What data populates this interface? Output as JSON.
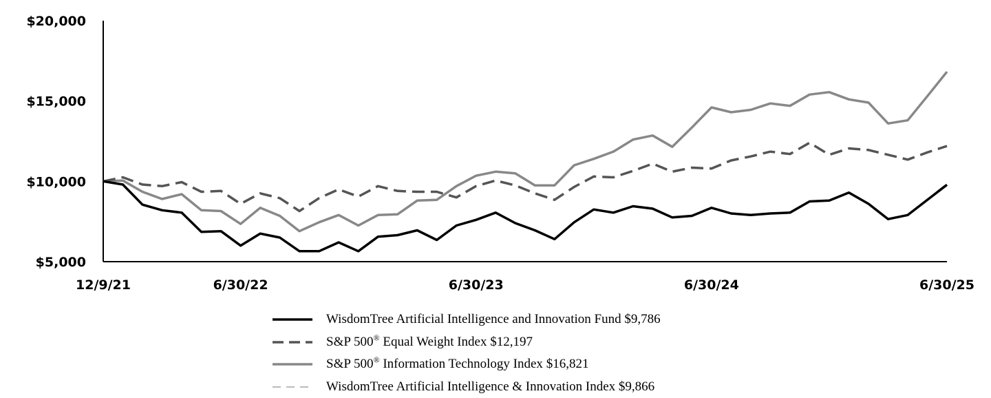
{
  "chart_data": {
    "type": "line",
    "x": [
      "12/9/21",
      "12/31/21",
      "1/31/22",
      "2/28/22",
      "3/31/22",
      "4/30/22",
      "5/31/22",
      "6/30/22",
      "7/31/22",
      "8/31/22",
      "9/30/22",
      "10/31/22",
      "11/30/22",
      "12/31/22",
      "1/31/23",
      "2/28/23",
      "3/31/23",
      "4/30/23",
      "5/31/23",
      "6/30/23",
      "7/31/23",
      "8/31/23",
      "9/30/23",
      "10/31/23",
      "11/30/23",
      "12/31/23",
      "1/31/24",
      "2/29/24",
      "3/31/24",
      "4/30/24",
      "5/31/24",
      "6/30/24",
      "7/31/24",
      "8/31/24",
      "9/30/24",
      "10/31/24",
      "11/30/24",
      "12/31/24",
      "1/31/25",
      "2/28/25",
      "3/31/25",
      "4/30/25",
      "5/31/25",
      "6/30/25"
    ],
    "x_ticks": [
      "12/9/21",
      "6/30/22",
      "6/30/23",
      "6/30/24",
      "6/30/25"
    ],
    "y_ticks": [
      "$5,000",
      "$10,000",
      "$15,000",
      "$20,000"
    ],
    "ylim": [
      5000,
      20000
    ],
    "grid": false,
    "legend_position": "bottom",
    "series": [
      {
        "name": "WisdomTree Artificial Intelligence and Innovation Fund",
        "end_value": "$9,786",
        "color": "#000000",
        "style": "solid",
        "values": [
          10000,
          9800,
          8550,
          8200,
          8050,
          6850,
          6900,
          6000,
          6750,
          6500,
          5650,
          5650,
          6200,
          5650,
          6550,
          6650,
          6950,
          6350,
          7250,
          7600,
          8050,
          7400,
          6950,
          6400,
          7450,
          8250,
          8050,
          8450,
          8300,
          7750,
          7850,
          8350,
          8000,
          7900,
          8000,
          8050,
          8750,
          8800,
          9300,
          8600,
          7650,
          7900,
          8850,
          9786
        ]
      },
      {
        "name": "S&P 500® Equal Weight Index",
        "end_value": "$12,197",
        "color": "#555555",
        "style": "dashed",
        "values": [
          10000,
          10250,
          9800,
          9700,
          9950,
          9350,
          9400,
          8600,
          9250,
          8950,
          8150,
          8950,
          9500,
          9050,
          9700,
          9400,
          9350,
          9350,
          9000,
          9700,
          10050,
          9750,
          9250,
          8850,
          9650,
          10300,
          10250,
          10650,
          11100,
          10600,
          10850,
          10800,
          11300,
          11550,
          11850,
          11700,
          12400,
          11650,
          12050,
          11950,
          11650,
          11350,
          11800,
          12197
        ]
      },
      {
        "name": "S&P 500® Information Technology Index",
        "end_value": "$16,821",
        "color": "#888888",
        "style": "solid",
        "values": [
          10000,
          10050,
          9350,
          8900,
          9200,
          8200,
          8150,
          7350,
          8350,
          7850,
          6900,
          7450,
          7900,
          7250,
          7900,
          7950,
          8800,
          8850,
          9700,
          10350,
          10600,
          10500,
          9750,
          9750,
          11000,
          11400,
          11850,
          12600,
          12850,
          12150,
          13350,
          14600,
          14300,
          14450,
          14850,
          14700,
          15400,
          15550,
          15100,
          14900,
          13600,
          13800,
          15300,
          16821
        ]
      },
      {
        "name": "WisdomTree Artificial Intelligence & Innovation Index",
        "end_value": "$9,866",
        "color": "#bbbbbb",
        "style": "dashed",
        "values": [
          10000,
          9810,
          8570,
          8220,
          8070,
          6870,
          6920,
          6020,
          6770,
          6520,
          5670,
          5670,
          6220,
          5670,
          6570,
          6670,
          6970,
          6370,
          7270,
          7620,
          8070,
          7420,
          6970,
          6420,
          7470,
          8270,
          8070,
          8470,
          8320,
          7770,
          7870,
          8370,
          8020,
          7920,
          8020,
          8070,
          8770,
          8820,
          9320,
          8620,
          7670,
          7920,
          8870,
          9866
        ]
      }
    ]
  }
}
